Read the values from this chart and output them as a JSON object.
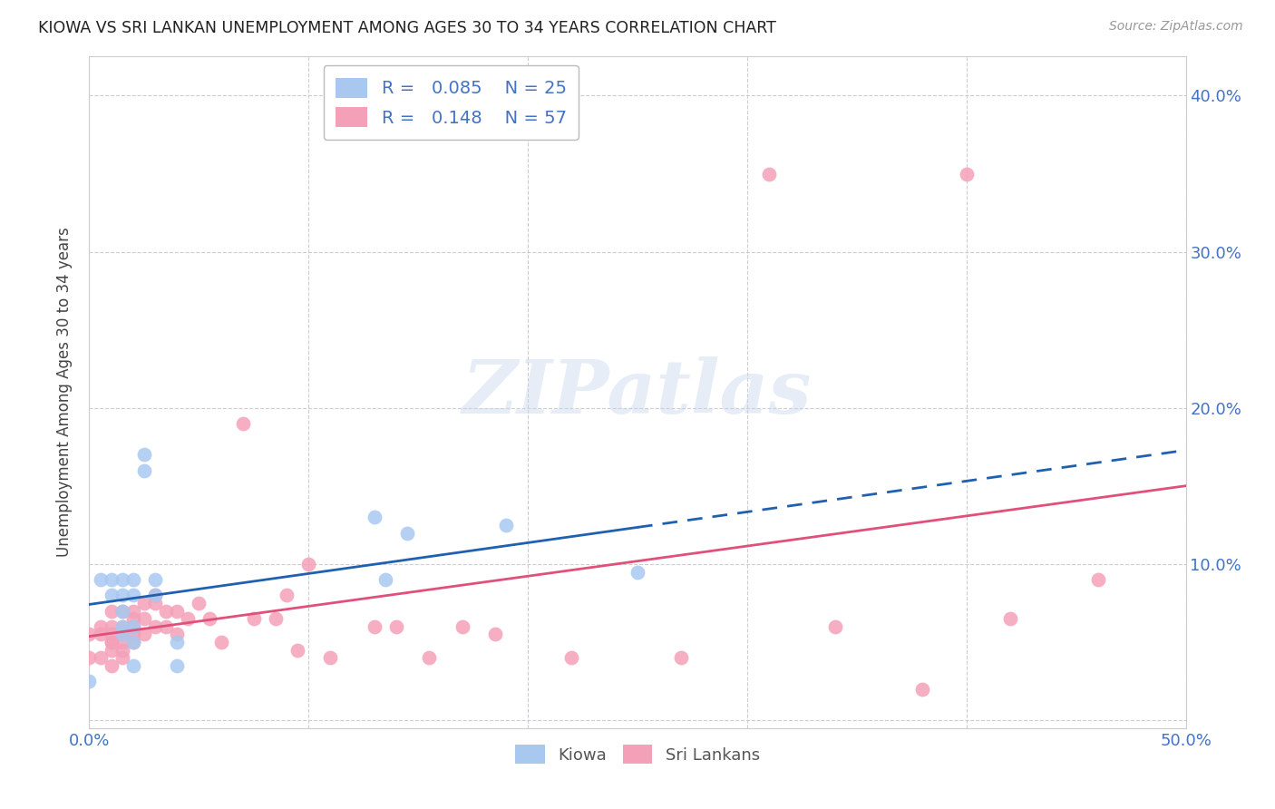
{
  "title": "KIOWA VS SRI LANKAN UNEMPLOYMENT AMONG AGES 30 TO 34 YEARS CORRELATION CHART",
  "source": "Source: ZipAtlas.com",
  "ylabel": "Unemployment Among Ages 30 to 34 years",
  "xlim": [
    0.0,
    0.5
  ],
  "ylim": [
    -0.005,
    0.425
  ],
  "xticks": [
    0.0,
    0.1,
    0.2,
    0.3,
    0.4,
    0.5
  ],
  "yticks": [
    0.0,
    0.1,
    0.2,
    0.3,
    0.4
  ],
  "ytick_labels_right": [
    "",
    "10.0%",
    "20.0%",
    "30.0%",
    "40.0%"
  ],
  "xtick_labels": [
    "0.0%",
    "",
    "",
    "",
    "",
    "50.0%"
  ],
  "kiowa_color": "#A8C8F0",
  "srilanka_color": "#F4A0B8",
  "kiowa_line_color": "#2060B0",
  "srilanka_line_color": "#E0507A",
  "kiowa_R": 0.085,
  "kiowa_N": 25,
  "srilanka_R": 0.148,
  "srilanka_N": 57,
  "watermark_text": "ZIPatlas",
  "kiowa_x": [
    0.0,
    0.005,
    0.01,
    0.01,
    0.015,
    0.015,
    0.015,
    0.015,
    0.015,
    0.02,
    0.02,
    0.02,
    0.02,
    0.02,
    0.025,
    0.025,
    0.03,
    0.03,
    0.04,
    0.04,
    0.13,
    0.135,
    0.145,
    0.19,
    0.25
  ],
  "kiowa_y": [
    0.025,
    0.09,
    0.09,
    0.08,
    0.09,
    0.08,
    0.07,
    0.06,
    0.055,
    0.09,
    0.08,
    0.06,
    0.05,
    0.035,
    0.17,
    0.16,
    0.09,
    0.08,
    0.05,
    0.035,
    0.13,
    0.09,
    0.12,
    0.125,
    0.095
  ],
  "srilanka_x": [
    0.0,
    0.0,
    0.005,
    0.005,
    0.005,
    0.01,
    0.01,
    0.01,
    0.01,
    0.01,
    0.01,
    0.01,
    0.015,
    0.015,
    0.015,
    0.015,
    0.015,
    0.015,
    0.02,
    0.02,
    0.02,
    0.02,
    0.02,
    0.025,
    0.025,
    0.025,
    0.03,
    0.03,
    0.03,
    0.035,
    0.035,
    0.04,
    0.04,
    0.045,
    0.05,
    0.055,
    0.06,
    0.07,
    0.075,
    0.085,
    0.09,
    0.095,
    0.1,
    0.11,
    0.13,
    0.14,
    0.155,
    0.17,
    0.185,
    0.22,
    0.27,
    0.31,
    0.34,
    0.38,
    0.4,
    0.42,
    0.46
  ],
  "srilanka_y": [
    0.055,
    0.04,
    0.06,
    0.055,
    0.04,
    0.07,
    0.06,
    0.055,
    0.05,
    0.05,
    0.045,
    0.035,
    0.07,
    0.06,
    0.055,
    0.05,
    0.045,
    0.04,
    0.07,
    0.065,
    0.06,
    0.055,
    0.05,
    0.075,
    0.065,
    0.055,
    0.08,
    0.075,
    0.06,
    0.07,
    0.06,
    0.07,
    0.055,
    0.065,
    0.075,
    0.065,
    0.05,
    0.19,
    0.065,
    0.065,
    0.08,
    0.045,
    0.1,
    0.04,
    0.06,
    0.06,
    0.04,
    0.06,
    0.055,
    0.04,
    0.04,
    0.35,
    0.06,
    0.02,
    0.35,
    0.065,
    0.09
  ],
  "grid_color": "#C8C8D0",
  "grid_linestyle": "--",
  "tick_color": "#4472C4"
}
